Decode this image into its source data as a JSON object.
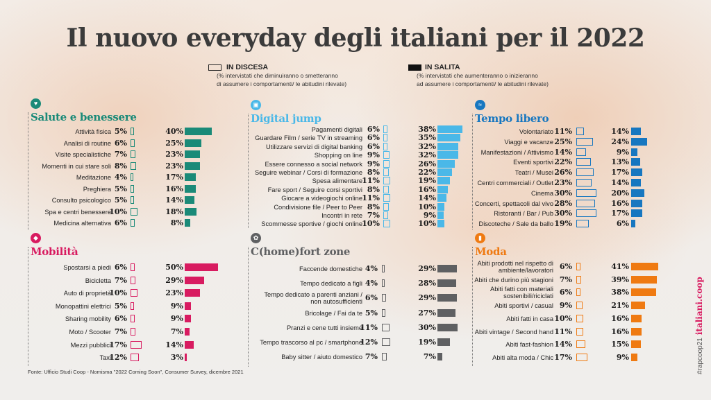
{
  "title": "Il nuovo everyday degli italiani per il 2022",
  "legend": {
    "down": {
      "label": "IN DISCESA",
      "line1": "(% intervistati che diminuiranno o smetteranno",
      "line2": "di assumere i comportamenti/ le abitudini rilevate)"
    },
    "up": {
      "label": "IN SALITA",
      "line1": "(% intervistati che aumenteranno o inizieranno",
      "line2": "ad assumere i comportamenti/ le abitudini rilevate)"
    }
  },
  "source": "Fonte: Ufficio Studi Coop - Nomisma \"2022 Coming Soon\", Consumer Survey, dicembre 2021",
  "side_text": {
    "hashtag": "#rapcoop21",
    "site": "italiani.coop"
  },
  "chart_data": [
    {
      "type": "bar",
      "title": "Salute e benessere",
      "icon": "heart-icon",
      "color": "#1a8a78",
      "categories": [
        "Attività fisica",
        "Analisi di routine",
        "Visite specialistiche",
        "Momenti in cui stare soli",
        "Meditazione",
        "Preghiera",
        "Consulto psicologico",
        "Spa e centri benessere",
        "Medicina alternativa"
      ],
      "series": [
        {
          "name": "IN DISCESA",
          "values": [
            5,
            6,
            7,
            8,
            4,
            5,
            5,
            10,
            6
          ]
        },
        {
          "name": "IN SALITA",
          "values": [
            40,
            25,
            23,
            23,
            17,
            16,
            14,
            18,
            8
          ]
        }
      ]
    },
    {
      "type": "bar",
      "title": "Digital jump",
      "icon": "screen-icon",
      "color": "#4ab8e8",
      "categories": [
        "Pagamenti digitali",
        "Guardare Film / serie TV in streaming",
        "Utilizzare servizi di digital banking",
        "Shopping on line",
        "Essere connesso a social network",
        "Seguire webinar / Corsi di formazione",
        "Spesa alimentare",
        "Fare sport / Seguire corsi sportivi",
        "Giocare a videogiochi online",
        "Condivisione file / Peer to Peer",
        "Incontri in rete",
        "Scommesse sportive / giochi online"
      ],
      "series": [
        {
          "name": "IN DISCESA",
          "values": [
            6,
            6,
            6,
            9,
            9,
            8,
            11,
            8,
            11,
            8,
            7,
            10
          ]
        },
        {
          "name": "IN SALITA",
          "values": [
            38,
            35,
            32,
            32,
            26,
            22,
            19,
            16,
            14,
            10,
            9,
            10
          ]
        }
      ]
    },
    {
      "type": "bar",
      "title": "Tempo libero",
      "icon": "wave-icon",
      "color": "#1777c0",
      "categories": [
        "Volontariato",
        "Viaggi e vacanze",
        "Manifestazioni / Attivismo",
        "Eventi sportivi",
        "Teatri / Musei",
        "Centri commerciali / Outlet",
        "Cinema",
        "Concerti, spettacoli dal vivo",
        "Ristoranti / Bar / Pub",
        "Discoteche / Sale da ballo"
      ],
      "series": [
        {
          "name": "IN DISCESA",
          "values": [
            11,
            25,
            14,
            22,
            26,
            23,
            30,
            28,
            30,
            19
          ]
        },
        {
          "name": "IN SALITA",
          "values": [
            14,
            24,
            9,
            13,
            17,
            14,
            20,
            16,
            17,
            6
          ]
        }
      ]
    },
    {
      "type": "bar",
      "title": "Mobilità",
      "icon": "car-icon",
      "color": "#d81b60",
      "categories": [
        "Spostarsi a piedi",
        "Bicicletta",
        "Auto di proprietà",
        "Monopattini elettrici",
        "Sharing mobility",
        "Moto / Scooter",
        "Mezzi pubblici",
        "Taxi"
      ],
      "series": [
        {
          "name": "IN DISCESA",
          "values": [
            6,
            7,
            10,
            5,
            6,
            7,
            17,
            12
          ]
        },
        {
          "name": "IN SALITA",
          "values": [
            50,
            29,
            23,
            9,
            9,
            7,
            14,
            3
          ]
        }
      ]
    },
    {
      "type": "bar",
      "title": "C(home)fort zone",
      "icon": "home-icon",
      "color": "#5f6062",
      "categories": [
        "Faccende domestiche",
        "Tempo dedicato a figli",
        "Tempo dedicato a parenti anziani / non autosufficienti",
        "Bricolage / Fai da te",
        "Pranzi e cene tutti insieme",
        "Tempo trascorso al pc / smartphone",
        "Baby sitter / aiuto domestico"
      ],
      "series": [
        {
          "name": "IN DISCESA",
          "values": [
            4,
            4,
            6,
            5,
            11,
            12,
            7
          ]
        },
        {
          "name": "IN SALITA",
          "values": [
            29,
            28,
            29,
            27,
            30,
            19,
            7
          ]
        }
      ]
    },
    {
      "type": "bar",
      "title": "Moda",
      "icon": "shopping-bag-icon",
      "color": "#ef7a12",
      "categories": [
        "Abiti prodotti nel rispetto di ambiente/lavoratori",
        "Abiti che durino più stagioni",
        "Abiti fatti con materiali sostenibili/riciclati",
        "Abiti sportivi / casual",
        "Abiti fatti in casa",
        "Abiti vintage / Second hand",
        "Abiti fast-fashion",
        "Abiti alta moda / Chic"
      ],
      "series": [
        {
          "name": "IN DISCESA",
          "values": [
            6,
            7,
            6,
            9,
            10,
            11,
            14,
            17
          ]
        },
        {
          "name": "IN SALITA",
          "values": [
            41,
            39,
            38,
            21,
            16,
            16,
            15,
            9
          ]
        }
      ]
    }
  ]
}
